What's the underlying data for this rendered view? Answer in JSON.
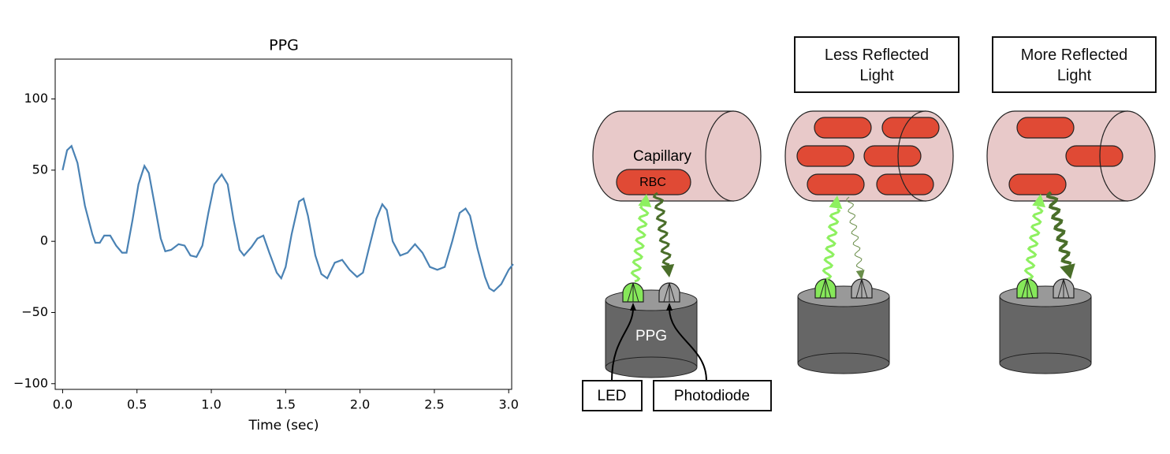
{
  "chart_data": {
    "type": "line",
    "title": "PPG",
    "x_label": "Time (sec)",
    "x": [
      0,
      0.03,
      0.06,
      0.1,
      0.15,
      0.2,
      0.22,
      0.25,
      0.28,
      0.32,
      0.36,
      0.4,
      0.43,
      0.47,
      0.51,
      0.55,
      0.58,
      0.62,
      0.66,
      0.69,
      0.73,
      0.78,
      0.82,
      0.86,
      0.9,
      0.94,
      0.98,
      1.02,
      1.07,
      1.11,
      1.15,
      1.19,
      1.22,
      1.27,
      1.31,
      1.35,
      1.39,
      1.44,
      1.47,
      1.5,
      1.54,
      1.59,
      1.62,
      1.65,
      1.7,
      1.74,
      1.78,
      1.83,
      1.88,
      1.93,
      1.98,
      2.02,
      2.06,
      2.11,
      2.15,
      2.18,
      2.22,
      2.27,
      2.32,
      2.37,
      2.42,
      2.47,
      2.52,
      2.57,
      2.62,
      2.67,
      2.71,
      2.74,
      2.79,
      2.84,
      2.87,
      2.9,
      2.95,
      3.0,
      3.03
    ],
    "series": [
      {
        "color": "#4a82b4",
        "values": [
          50,
          64,
          67,
          55,
          25,
          5,
          -1,
          -1,
          4,
          4,
          -3,
          -8,
          -8,
          15,
          40,
          53,
          48,
          25,
          2,
          -7,
          -6,
          -2,
          -3,
          -10,
          -11,
          -3,
          20,
          40,
          47,
          40,
          15,
          -6,
          -10,
          -4,
          2,
          4,
          -8,
          -22,
          -26,
          -18,
          5,
          28,
          30,
          18,
          -10,
          -23,
          -26,
          -15,
          -13,
          -20,
          -25,
          -22,
          -5,
          16,
          26,
          22,
          0,
          -10,
          -8,
          -2,
          -8,
          -18,
          -20,
          -18,
          0,
          20,
          23,
          18,
          -5,
          -25,
          -33,
          -35,
          -30,
          -20,
          -16
        ]
      }
    ],
    "xlim": [
      -0.05,
      3.02
    ],
    "ylim": [
      -104,
      128
    ],
    "xticks": [
      {
        "value": 0,
        "label": "0.0"
      },
      0.5,
      {
        "value": 1,
        "label": "1.0"
      },
      1.5,
      {
        "value": 2,
        "label": "2.0"
      },
      2.5,
      {
        "value": 3,
        "label": "3.0"
      }
    ],
    "yticks": [
      {
        "value": -100,
        "label": "−100"
      },
      {
        "value": -50,
        "label": "−50"
      },
      0,
      50,
      100
    ]
  },
  "diagram": {
    "capillary_label": "Capillary",
    "rbc_label": "RBC",
    "sensor_label": "PPG",
    "led_label": "LED",
    "photodiode_label": "Photodiode",
    "panels": [
      {
        "label": "Less Reflected Light"
      },
      {
        "label": "More Reflected Light"
      }
    ]
  }
}
